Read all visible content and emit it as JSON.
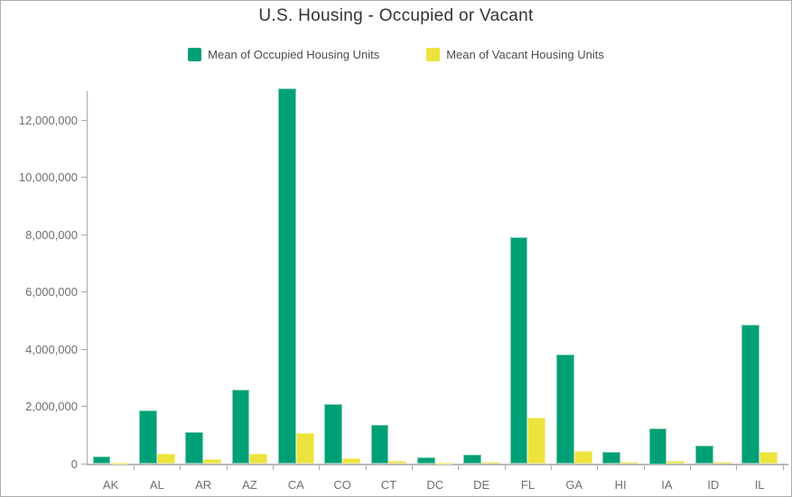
{
  "chart": {
    "title": "U.S. Housing - Occupied or Vacant",
    "legend": [
      {
        "label": "Mean of Occupied Housing Units",
        "color": "#00a077"
      },
      {
        "label": "Mean of Vacant Housing Units",
        "color": "#ece33c"
      }
    ]
  },
  "chart_data": {
    "type": "bar",
    "title": "U.S. Housing - Occupied or Vacant",
    "categories": [
      "AK",
      "AL",
      "AR",
      "AZ",
      "CA",
      "CO",
      "CT",
      "DC",
      "DE",
      "FL",
      "GA",
      "HI",
      "IA",
      "ID",
      "IL"
    ],
    "series": [
      {
        "name": "Mean of Occupied Housing Units",
        "color": "#00a077",
        "values": [
          260000,
          1870000,
          1130000,
          2610000,
          13110000,
          2100000,
          1370000,
          250000,
          330000,
          7920000,
          3830000,
          440000,
          1250000,
          630000,
          4860000
        ]
      },
      {
        "name": "Mean of Vacant Housing Units",
        "color": "#ece33c",
        "values": [
          50000,
          360000,
          180000,
          370000,
          1090000,
          220000,
          110000,
          40000,
          70000,
          1620000,
          450000,
          70000,
          115000,
          65000,
          440000
        ]
      }
    ],
    "xlabel": "",
    "ylabel": "",
    "ylim": [
      0,
      13030000
    ],
    "yticks": [
      0,
      2000000,
      4000000,
      6000000,
      8000000,
      10000000,
      12000000
    ],
    "ytick_labels": [
      "0",
      "2,000,000",
      "4,000,000",
      "6,000,000",
      "8,000,000",
      "10,000,000",
      "12,000,000"
    ],
    "grid": false,
    "legend_position": "top-center"
  }
}
